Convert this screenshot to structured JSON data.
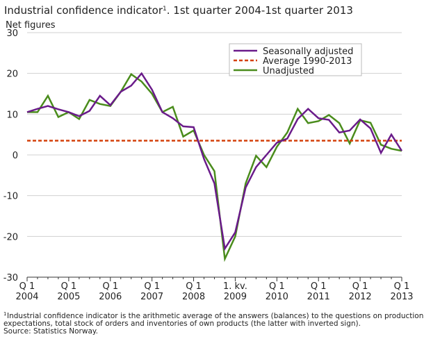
{
  "chart_data": {
    "type": "line",
    "title": "Industrial confidence indicator",
    "title_sup": "1",
    "title_rest": ". 1st quarter 2004-1st quarter 2013",
    "y_label": "Net figures",
    "categories": [
      [
        "Q 1",
        "2004"
      ],
      null,
      null,
      null,
      [
        "Q 1",
        "2005"
      ],
      null,
      null,
      null,
      [
        "Q 1",
        "2006"
      ],
      null,
      null,
      null,
      [
        "Q 1",
        "2007"
      ],
      null,
      null,
      null,
      [
        "Q 1",
        "2008"
      ],
      null,
      null,
      null,
      [
        "1. kv.",
        "2009"
      ],
      null,
      null,
      null,
      [
        "Q 1",
        "2010"
      ],
      null,
      null,
      null,
      [
        "Q 1",
        "2011"
      ],
      null,
      null,
      null,
      [
        "Q 1",
        "2012"
      ],
      null,
      null,
      null,
      [
        "Q 1",
        "2013"
      ]
    ],
    "series": [
      {
        "name": "Seasonally adjusted",
        "color": "#6a1b8a",
        "dash": false,
        "values": [
          10.5,
          11.3,
          12,
          11.2,
          10.5,
          9.5,
          10.8,
          14.5,
          12.2,
          15.5,
          17,
          20,
          16,
          10.5,
          9,
          7,
          6.8,
          -1,
          -7,
          -23,
          -19,
          -8,
          -3,
          0,
          3,
          4,
          8.8,
          11.3,
          9,
          8.6,
          5.5,
          6,
          8.7,
          6.5,
          0.5,
          5,
          1
        ]
      },
      {
        "name": "Average 1990-2013",
        "color": "#d4400a",
        "dash": true,
        "values": [
          3.5,
          3.5,
          3.5,
          3.5,
          3.5,
          3.5,
          3.5,
          3.5,
          3.5,
          3.5,
          3.5,
          3.5,
          3.5,
          3.5,
          3.5,
          3.5,
          3.5,
          3.5,
          3.5,
          3.5,
          3.5,
          3.5,
          3.5,
          3.5,
          3.5,
          3.5,
          3.5,
          3.5,
          3.5,
          3.5,
          3.5,
          3.5,
          3.5,
          3.5,
          3.5,
          3.5,
          3.5
        ]
      },
      {
        "name": "Unadjusted",
        "color": "#4a8c1c",
        "dash": false,
        "values": [
          10.5,
          10.5,
          14.5,
          9.3,
          10.5,
          8.8,
          13.5,
          12.5,
          12,
          15.5,
          19.8,
          18,
          15,
          10.5,
          11.8,
          4.5,
          6,
          0,
          -4,
          -25.5,
          -20,
          -7,
          -0.2,
          -3,
          2,
          5.5,
          11.3,
          7.8,
          8.3,
          9.8,
          7.8,
          2.8,
          8.5,
          7.9,
          2.5,
          1.5,
          1
        ]
      }
    ],
    "ylim": [
      -30,
      30
    ],
    "yticks": [
      -30,
      -20,
      -10,
      0,
      10,
      20,
      30
    ],
    "grid": true,
    "legend": "top-right",
    "footnote_sup": "1",
    "footnote": [
      "Industrial confidence indicator is the arithmetic average of the answers (balances) to the questions on production",
      "expectations, total stock of orders and inventories of own products (the latter with inverted sign).",
      "Source: Statistics Norway."
    ]
  }
}
